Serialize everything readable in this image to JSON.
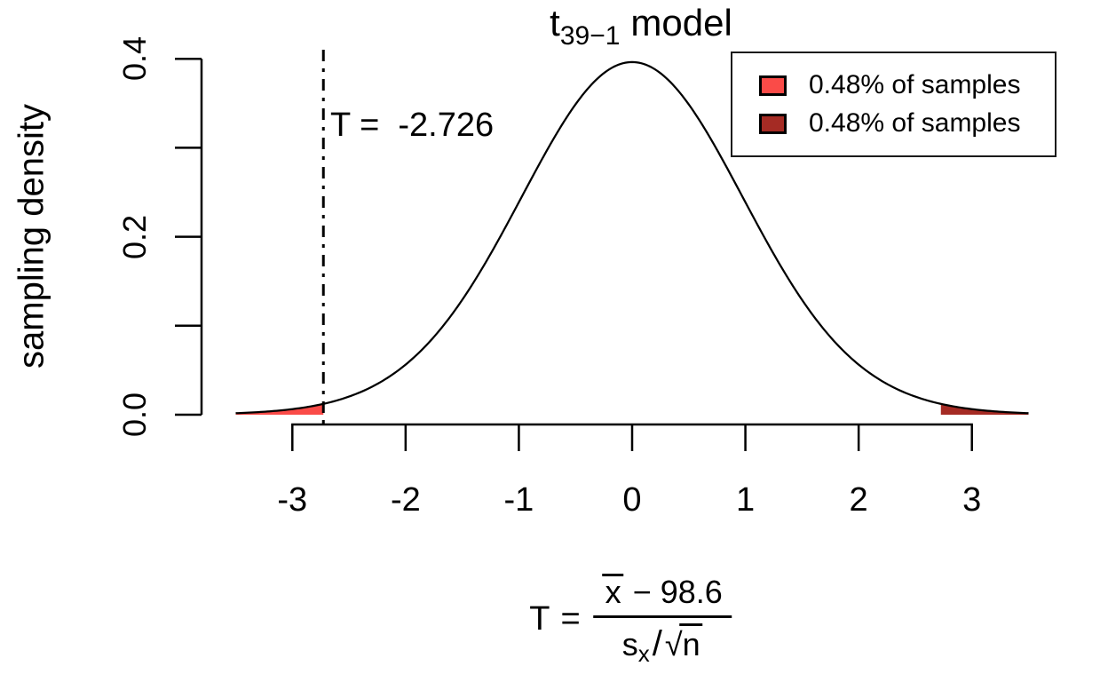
{
  "title": {
    "base": "t",
    "subscript": "39−1",
    "rest": "model"
  },
  "y_axis": {
    "label": "sampling density"
  },
  "annotation": {
    "text": "T =  -2.726"
  },
  "legend": {
    "items": [
      {
        "label": "0.48% of samples",
        "color": "#FA4B48"
      },
      {
        "label": "0.48% of samples",
        "color": "#A52B24"
      }
    ]
  },
  "formula": {
    "lhs": "T",
    "eq": "=",
    "numerator": {
      "xbar": "x",
      "minus": "−",
      "constant": "98.6"
    },
    "denominator": {
      "s": "s",
      "sub": "x",
      "slash": "/",
      "radical": "√",
      "n": "n"
    }
  },
  "chart_data": {
    "type": "area",
    "title": "t(39−1) model",
    "ylabel": "sampling density",
    "xlabel_formula": "T = (x̄ − 98.6) / (sx/√n)",
    "distribution": "t",
    "df": 38,
    "x_range": [
      -3.5,
      3.5
    ],
    "ylim": [
      0,
      0.4
    ],
    "x_ticks": [
      -3,
      -2,
      -1,
      0,
      1,
      2,
      3
    ],
    "y_ticks": [
      0,
      0.1,
      0.2,
      0.3,
      0.4
    ],
    "y_labeled_ticks": [
      {
        "value": 0,
        "label": "0.0"
      },
      {
        "value": 0.2,
        "label": "0.2"
      },
      {
        "value": 0.4,
        "label": "0.4"
      }
    ],
    "test_statistic": -2.726,
    "vline": {
      "x": -2.726,
      "style": "dotdash",
      "label": "T =  -2.726"
    },
    "shaded_tails": [
      {
        "from": -3.5,
        "to": -2.726,
        "share_label": "0.48% of samples",
        "color": "#FA4B48"
      },
      {
        "from": 2.726,
        "to": 3.5,
        "share_label": "0.48% of samples",
        "color": "#A52B24"
      }
    ],
    "curve_color": "#000000",
    "legend_position": "topright",
    "grid": false
  },
  "colors": {
    "background": "#FFFFFF",
    "axis": "#000000",
    "text": "#000000",
    "legend_border": "#1A1A1A"
  }
}
